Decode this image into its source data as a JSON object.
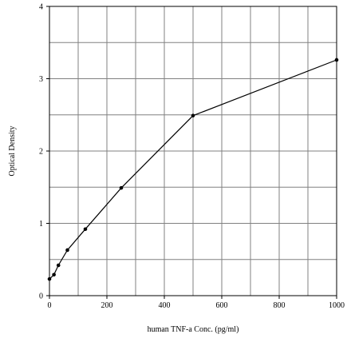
{
  "chart_data": {
    "type": "line",
    "title": "",
    "xlabel": "human TNF-a Conc. (pg/ml)",
    "ylabel": "Optical Density",
    "xlim": [
      0,
      1000
    ],
    "ylim": [
      0,
      4
    ],
    "x_ticks": [
      0,
      200,
      400,
      600,
      800,
      1000
    ],
    "y_ticks": [
      0,
      1,
      2,
      3,
      4
    ],
    "x_tick_labels": [
      "0",
      "200",
      "400",
      "600",
      "800",
      "1000"
    ],
    "y_tick_labels": [
      "0",
      "1",
      "2",
      "3",
      "4"
    ],
    "x_minor_step": 100,
    "y_minor_step": 0.5,
    "grid": true,
    "legend": "none",
    "line_color": "#000000",
    "grid_color": "#808080",
    "series": [
      {
        "x": [
          0,
          15.6,
          31.2,
          62.5,
          125,
          250,
          500,
          1000
        ],
        "y": [
          0.23,
          0.29,
          0.42,
          0.63,
          0.92,
          1.49,
          2.49,
          3.26
        ]
      }
    ]
  }
}
